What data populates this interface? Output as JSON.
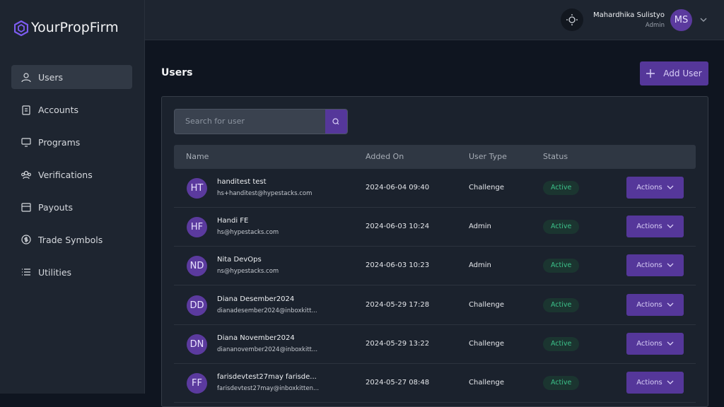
{
  "brand": "YourPropFirm",
  "header": {
    "user_name": "Mahardhika Sulistyo",
    "user_role": "Admin",
    "avatar": "MS"
  },
  "nav": [
    "Users",
    "Accounts",
    "Programs",
    "Verifications",
    "Payouts",
    "Trade Symbols",
    "Utilities"
  ],
  "page": {
    "title": "Users",
    "add_button": "Add User",
    "search_placeholder": "Search for user"
  },
  "table": {
    "columns": [
      "Name",
      "Added On",
      "User Type",
      "Status"
    ],
    "rows": [
      {
        "initials": "HT",
        "name": "handitest test",
        "email": "hs+handitest@hypestacks.com",
        "added_on": "2024-06-04 09:40",
        "user_type": "Challenge",
        "status": "Active",
        "action": "Actions"
      },
      {
        "initials": "HF",
        "name": "Handi FE",
        "email": "hs@hypestacks.com",
        "added_on": "2024-06-03 10:24",
        "user_type": "Admin",
        "status": "Active",
        "action": "Actions"
      },
      {
        "initials": "ND",
        "name": "Nita DevOps",
        "email": "ns@hypestacks.com",
        "added_on": "2024-06-03 10:23",
        "user_type": "Admin",
        "status": "Active",
        "action": "Actions"
      },
      {
        "initials": "DD",
        "name": "Diana Desember2024",
        "email": "dianadesember2024@inboxkitt...",
        "added_on": "2024-05-29 17:28",
        "user_type": "Challenge",
        "status": "Active",
        "action": "Actions"
      },
      {
        "initials": "DN",
        "name": "Diana November2024",
        "email": "diananovember2024@inboxkitt...",
        "added_on": "2024-05-29 13:22",
        "user_type": "Challenge",
        "status": "Active",
        "action": "Actions"
      },
      {
        "initials": "FF",
        "name": "farisdevtest27may farisde...",
        "email": "farisdevtest27may@inboxkitten...",
        "added_on": "2024-05-27 08:48",
        "user_type": "Challenge",
        "status": "Active",
        "action": "Actions"
      }
    ]
  }
}
